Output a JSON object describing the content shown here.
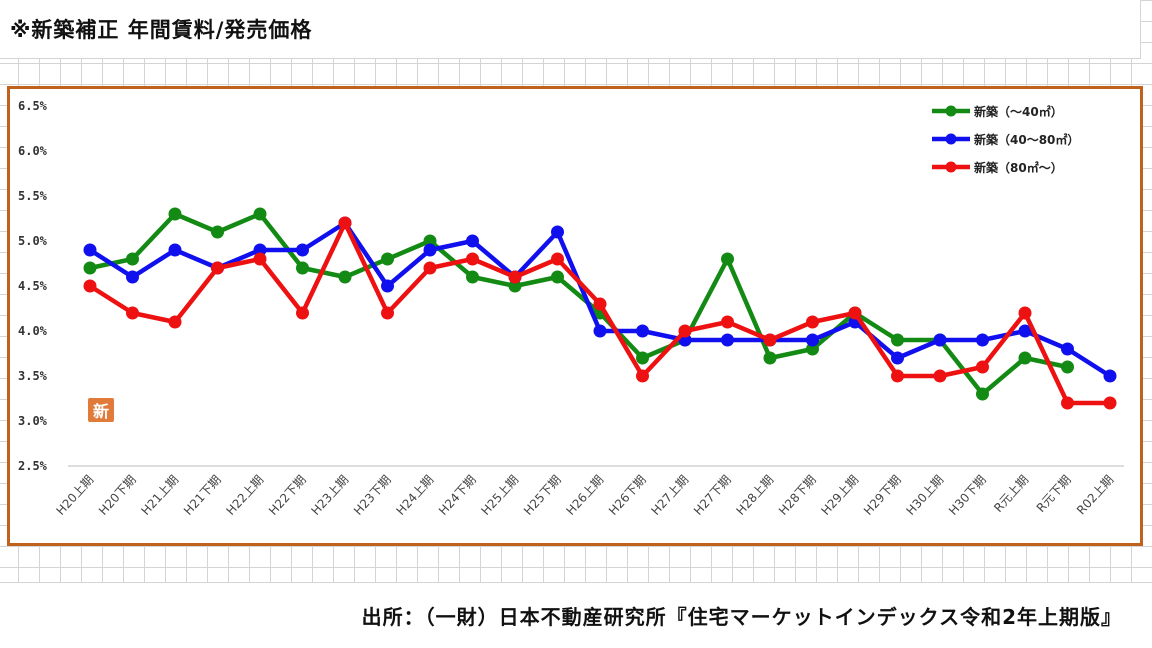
{
  "page": {
    "title": "※新築補正 年間賃料/発売価格",
    "source": "出所：（一財）日本不動産研究所『住宅マーケットインデックス令和2年上期版』",
    "stamp": "新"
  },
  "chart_data": {
    "type": "line",
    "title": "",
    "xlabel": "",
    "ylabel": "",
    "ylim": [
      2.5,
      6.5
    ],
    "yticks": [
      "6.5%",
      "6.0%",
      "5.5%",
      "5.0%",
      "4.5%",
      "4.0%",
      "3.5%",
      "3.0%",
      "2.5%"
    ],
    "legend_position": "top-right",
    "categories": [
      "H20上期",
      "H20下期",
      "H21上期",
      "H21下期",
      "H22上期",
      "H22下期",
      "H23上期",
      "H23下期",
      "H24上期",
      "H24下期",
      "H25上期",
      "H25下期",
      "H26上期",
      "H26下期",
      "H27上期",
      "H27下期",
      "H28上期",
      "H28下期",
      "H29上期",
      "H29下期",
      "H30上期",
      "H30下期",
      "R元上期",
      "R元下期",
      "R02上期"
    ],
    "series": [
      {
        "name": "新築（～40㎡）",
        "color": "#138a13",
        "values": [
          4.7,
          4.8,
          5.3,
          5.1,
          5.3,
          4.7,
          4.6,
          4.8,
          5.0,
          4.6,
          4.5,
          4.6,
          4.2,
          3.7,
          3.9,
          4.8,
          3.7,
          3.8,
          4.2,
          3.9,
          3.9,
          3.3,
          3.7,
          3.6,
          null
        ]
      },
      {
        "name": "新築（40～80㎡）",
        "color": "#1010ee",
        "values": [
          4.9,
          4.6,
          4.9,
          4.7,
          4.9,
          4.9,
          5.2,
          4.5,
          4.9,
          5.0,
          4.6,
          5.1,
          4.0,
          4.0,
          3.9,
          3.9,
          3.9,
          3.9,
          4.1,
          3.7,
          3.9,
          3.9,
          4.0,
          3.8,
          3.5
        ]
      },
      {
        "name": "新築（80㎡～）",
        "color": "#ee1111",
        "values": [
          4.5,
          4.2,
          4.1,
          4.7,
          4.8,
          4.2,
          5.2,
          4.2,
          4.7,
          4.8,
          4.6,
          4.8,
          4.3,
          3.5,
          4.0,
          4.1,
          3.9,
          4.1,
          4.2,
          3.5,
          3.5,
          3.6,
          4.2,
          3.2,
          3.2
        ]
      }
    ]
  }
}
